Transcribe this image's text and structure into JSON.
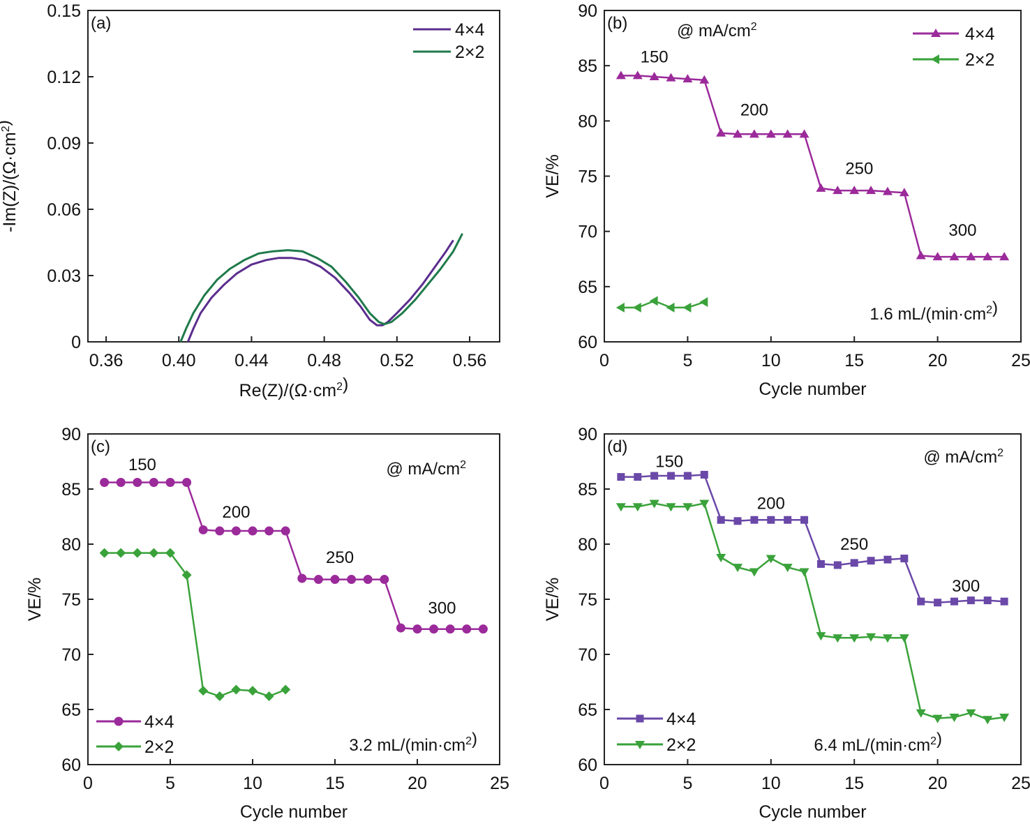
{
  "chart_data": [
    {
      "id": "a",
      "type": "line",
      "panel_label": "(a)",
      "xlabel": "Re(Z)/(Ω·cm²)",
      "ylabel": "-Im(Z)/(Ω·cm²)",
      "xlim": [
        0.35,
        0.5765
      ],
      "ylim": [
        0,
        0.15
      ],
      "xticks": [
        0.36,
        0.4,
        0.44,
        0.48,
        0.52,
        0.56
      ],
      "xtick_labels": [
        "0.36",
        "0.40",
        "0.44",
        "0.48",
        "0.52",
        "0.56"
      ],
      "yticks": [
        0,
        0.03,
        0.06,
        0.09,
        0.12,
        0.15
      ],
      "ytick_labels": [
        "0",
        "0.03",
        "0.06",
        "0.09",
        "0.12",
        "0.15"
      ],
      "legend_position": "top-right",
      "grid": false,
      "series": [
        {
          "name": "4×4",
          "color": "#5b2d8e",
          "marker": "none",
          "x": [
            0.405,
            0.408,
            0.412,
            0.418,
            0.425,
            0.432,
            0.44,
            0.448,
            0.455,
            0.462,
            0.47,
            0.478,
            0.486,
            0.494,
            0.5,
            0.505,
            0.509,
            0.512,
            0.515,
            0.52,
            0.527,
            0.534,
            0.541,
            0.547,
            0.551
          ],
          "y": [
            0.0,
            0.006,
            0.013,
            0.02,
            0.026,
            0.031,
            0.035,
            0.037,
            0.038,
            0.038,
            0.037,
            0.034,
            0.029,
            0.022,
            0.016,
            0.01,
            0.0075,
            0.0075,
            0.009,
            0.013,
            0.019,
            0.026,
            0.034,
            0.041,
            0.046
          ]
        },
        {
          "name": "2×2",
          "color": "#1f7a4a",
          "marker": "none",
          "x": [
            0.401,
            0.404,
            0.408,
            0.414,
            0.421,
            0.428,
            0.436,
            0.444,
            0.452,
            0.46,
            0.468,
            0.476,
            0.484,
            0.492,
            0.499,
            0.505,
            0.51,
            0.513,
            0.517,
            0.523,
            0.53,
            0.537,
            0.544,
            0.551,
            0.556
          ],
          "y": [
            0.0,
            0.006,
            0.013,
            0.021,
            0.028,
            0.033,
            0.037,
            0.04,
            0.041,
            0.0415,
            0.041,
            0.038,
            0.034,
            0.027,
            0.02,
            0.013,
            0.009,
            0.008,
            0.009,
            0.013,
            0.019,
            0.026,
            0.033,
            0.041,
            0.049
          ]
        }
      ]
    },
    {
      "id": "b",
      "type": "line",
      "panel_label": "(b)",
      "xlabel": "Cycle number",
      "ylabel": "VE/%",
      "xlim": [
        0,
        25
      ],
      "ylim": [
        60,
        90
      ],
      "xticks": [
        0,
        5,
        10,
        15,
        20,
        25
      ],
      "xtick_labels": [
        "0",
        "5",
        "10",
        "15",
        "20",
        "25"
      ],
      "yticks": [
        60,
        65,
        70,
        75,
        80,
        85,
        90
      ],
      "ytick_labels": [
        "60",
        "65",
        "70",
        "75",
        "80",
        "85",
        "90"
      ],
      "legend_position": "top-right",
      "grid": false,
      "annotations": {
        "current_density": "@ mA/cm²",
        "flow_rate": "1.6 mL/(min·cm²)",
        "step_labels": [
          {
            "text": "150",
            "x": 3.0,
            "y": 85.3
          },
          {
            "text": "200",
            "x": 9.0,
            "y": 80.5
          },
          {
            "text": "250",
            "x": 15.3,
            "y": 75.2
          },
          {
            "text": "300",
            "x": 21.5,
            "y": 69.6
          }
        ]
      },
      "series": [
        {
          "name": "4×4",
          "color": "#9b2a9a",
          "marker": "triangle-up",
          "x": [
            1,
            2,
            3,
            4,
            5,
            6,
            7,
            8,
            9,
            10,
            11,
            12,
            13,
            14,
            15,
            16,
            17,
            18,
            19,
            20,
            21,
            22,
            23,
            24
          ],
          "y": [
            84.1,
            84.1,
            84.0,
            83.9,
            83.8,
            83.7,
            78.9,
            78.8,
            78.8,
            78.8,
            78.8,
            78.8,
            73.9,
            73.7,
            73.7,
            73.7,
            73.6,
            73.5,
            67.8,
            67.7,
            67.7,
            67.7,
            67.7,
            67.7
          ]
        },
        {
          "name": "2×2",
          "color": "#3aa23a",
          "marker": "triangle-left",
          "x": [
            1,
            2,
            3,
            4,
            5,
            6
          ],
          "y": [
            63.1,
            63.1,
            63.7,
            63.1,
            63.1,
            63.6
          ]
        }
      ]
    },
    {
      "id": "c",
      "type": "line",
      "panel_label": "(c)",
      "xlabel": "Cycle number",
      "ylabel": "VE/%",
      "xlim": [
        0,
        25
      ],
      "ylim": [
        60,
        90
      ],
      "xticks": [
        0,
        5,
        10,
        15,
        20,
        25
      ],
      "xtick_labels": [
        "0",
        "5",
        "10",
        "15",
        "20",
        "25"
      ],
      "yticks": [
        60,
        65,
        70,
        75,
        80,
        85,
        90
      ],
      "ytick_labels": [
        "60",
        "65",
        "70",
        "75",
        "80",
        "85",
        "90"
      ],
      "legend_position": "bottom-left",
      "grid": false,
      "annotations": {
        "current_density": "@ mA/cm²",
        "flow_rate": "3.2 mL/(min·cm²)",
        "step_labels": [
          {
            "text": "150",
            "x": 3.3,
            "y": 86.7
          },
          {
            "text": "200",
            "x": 9.0,
            "y": 82.4
          },
          {
            "text": "250",
            "x": 15.3,
            "y": 78.3
          },
          {
            "text": "300",
            "x": 21.5,
            "y": 73.7
          }
        ]
      },
      "series": [
        {
          "name": "4×4",
          "color": "#9b2a9a",
          "marker": "circle",
          "x": [
            1,
            2,
            3,
            4,
            5,
            6,
            7,
            8,
            9,
            10,
            11,
            12,
            13,
            14,
            15,
            16,
            17,
            18,
            19,
            20,
            21,
            22,
            23,
            24
          ],
          "y": [
            85.6,
            85.6,
            85.6,
            85.6,
            85.6,
            85.6,
            81.3,
            81.2,
            81.2,
            81.2,
            81.2,
            81.2,
            76.9,
            76.8,
            76.8,
            76.8,
            76.8,
            76.8,
            72.4,
            72.3,
            72.3,
            72.3,
            72.3,
            72.3
          ]
        },
        {
          "name": "2×2",
          "color": "#3aa23a",
          "marker": "diamond",
          "x": [
            1,
            2,
            3,
            4,
            5,
            6,
            7,
            8,
            9,
            10,
            11,
            12
          ],
          "y": [
            79.2,
            79.2,
            79.2,
            79.2,
            79.2,
            77.2,
            66.7,
            66.2,
            66.8,
            66.7,
            66.2,
            66.8
          ]
        }
      ]
    },
    {
      "id": "d",
      "type": "line",
      "panel_label": "(d)",
      "xlabel": "Cycle number",
      "ylabel": "VE/%",
      "xlim": [
        0,
        25
      ],
      "ylim": [
        60,
        90
      ],
      "xticks": [
        0,
        5,
        10,
        15,
        20,
        25
      ],
      "xtick_labels": [
        "0",
        "5",
        "10",
        "15",
        "20",
        "25"
      ],
      "yticks": [
        60,
        65,
        70,
        75,
        80,
        85,
        90
      ],
      "ytick_labels": [
        "60",
        "65",
        "70",
        "75",
        "80",
        "85",
        "90"
      ],
      "legend_position": "bottom-left",
      "grid": false,
      "annotations": {
        "current_density": "@ mA/cm²",
        "flow_rate": "6.4 mL/(min·cm²)",
        "step_labels": [
          {
            "text": "150",
            "x": 3.9,
            "y": 87.0
          },
          {
            "text": "200",
            "x": 10.0,
            "y": 83.2
          },
          {
            "text": "250",
            "x": 15.0,
            "y": 79.5
          },
          {
            "text": "300",
            "x": 21.7,
            "y": 75.7
          }
        ]
      },
      "series": [
        {
          "name": "4×4",
          "color": "#6a48a8",
          "marker": "square",
          "x": [
            1,
            2,
            3,
            4,
            5,
            6,
            7,
            8,
            9,
            10,
            11,
            12,
            13,
            14,
            15,
            16,
            17,
            18,
            19,
            20,
            21,
            22,
            23,
            24
          ],
          "y": [
            86.1,
            86.1,
            86.2,
            86.2,
            86.2,
            86.3,
            82.2,
            82.1,
            82.2,
            82.2,
            82.2,
            82.2,
            78.2,
            78.1,
            78.3,
            78.5,
            78.6,
            78.7,
            74.8,
            74.7,
            74.8,
            74.9,
            74.9,
            74.8
          ]
        },
        {
          "name": "2×2",
          "color": "#3aa23a",
          "marker": "triangle-down",
          "x": [
            1,
            2,
            3,
            4,
            5,
            6,
            7,
            8,
            9,
            10,
            11,
            12,
            13,
            14,
            15,
            16,
            17,
            18,
            19,
            20,
            21,
            22,
            23,
            24
          ],
          "y": [
            83.4,
            83.4,
            83.7,
            83.4,
            83.4,
            83.7,
            78.8,
            77.9,
            77.5,
            78.7,
            77.9,
            77.5,
            71.7,
            71.5,
            71.5,
            71.6,
            71.5,
            71.5,
            64.7,
            64.2,
            64.3,
            64.7,
            64.1,
            64.3
          ]
        }
      ]
    }
  ]
}
